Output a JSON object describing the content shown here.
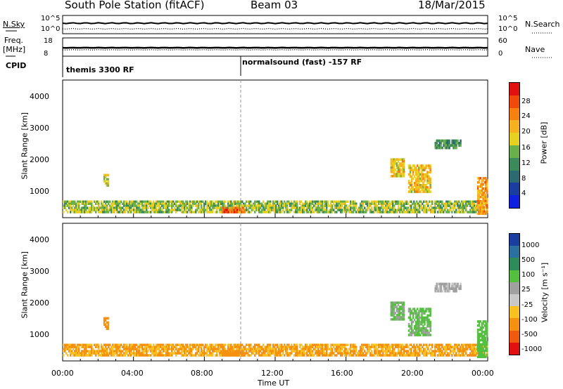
{
  "header": {
    "title": "South Pole Station (fitACF)",
    "beam": "Beam 03",
    "date": "18/Mar/2015"
  },
  "top_panels": {
    "nsky_label": "N.Sky",
    "nsearch_label": "N.Search",
    "nsky_ticks": [
      "10^5",
      "10^0"
    ],
    "nsearch_ticks": [
      "10^5",
      "10^0"
    ],
    "freq_label_1": "Freq.",
    "freq_label_2": "[MHz]",
    "freq_ticks": [
      "18",
      "8"
    ],
    "nave_label": "Nave",
    "nave_ticks": [
      "60",
      "0"
    ],
    "cpid_label": "CPID",
    "cpid_1": "themis 3300 RF",
    "cpid_2": "normalsound (fast) -157 RF"
  },
  "panels": {
    "power": {
      "ylabel": "Slant Range [km]",
      "yticks": [
        "4000",
        "3000",
        "2000",
        "1000"
      ],
      "cb_label": "Power [dB]",
      "cb_ticks": [
        "28",
        "24",
        "20",
        "16",
        "12",
        "8",
        "4"
      ],
      "cb_colors": [
        "#e01010",
        "#f04a0a",
        "#f68010",
        "#f7b020",
        "#e8d020",
        "#6ab04a",
        "#3a8a5a",
        "#2a6a70",
        "#1a3ea0",
        "#1020e0"
      ]
    },
    "velocity": {
      "ylabel": "Slant Range [km]",
      "yticks": [
        "4000",
        "3000",
        "2000",
        "1000"
      ],
      "cb_label": "Velocity [m s⁻¹]",
      "cb_ticks": [
        "1000",
        "500",
        "100",
        "25",
        "-25",
        "-100",
        "-500",
        "-1000"
      ],
      "cb_colors": [
        "#1a3ea0",
        "#2a70a0",
        "#2e8b57",
        "#55c040",
        "#a0a0a0",
        "#c8c8c8",
        "#f8c020",
        "#f69010",
        "#f05a10",
        "#e01010"
      ]
    }
  },
  "xaxis": {
    "label": "Time UT",
    "ticks": [
      "00:00",
      "04:00",
      "08:00",
      "12:00",
      "16:00",
      "20:00",
      "00:00"
    ]
  },
  "chart_data": {
    "type": "heatmap",
    "title": "South Pole Station (fitACF)",
    "subtitle": "Beam 03",
    "date": "18/Mar/2015",
    "xlabel": "Time UT",
    "ylabel": "Slant Range [km]",
    "xlim_hours": [
      0,
      24
    ],
    "ylim_km": [
      200,
      4600
    ],
    "panels": [
      {
        "name": "Power",
        "unit": "dB",
        "zlim": [
          0,
          32
        ]
      },
      {
        "name": "Velocity",
        "unit": "m s^-1",
        "zlim": [
          -1000,
          1000
        ]
      }
    ],
    "mode_change_hour": 10.0,
    "modes": [
      {
        "start_hour": 0,
        "name": "themis 3300 RF"
      },
      {
        "start_hour": 10,
        "name": "normalsound (fast) -157 RF"
      }
    ],
    "echo_regions": [
      {
        "t0": 0.0,
        "t1": 24.0,
        "r0": 350,
        "r1": 750,
        "power": 14,
        "velocity": -120
      },
      {
        "t0": 9.0,
        "t1": 10.3,
        "r0": 350,
        "r1": 550,
        "power": 26,
        "velocity": -200
      },
      {
        "t0": 2.3,
        "t1": 2.6,
        "r0": 1200,
        "r1": 1600,
        "power": 16,
        "velocity": -200
      },
      {
        "t0": 18.5,
        "t1": 19.3,
        "r0": 1500,
        "r1": 2100,
        "power": 18,
        "velocity": 100
      },
      {
        "t0": 19.5,
        "t1": 20.8,
        "r0": 1000,
        "r1": 1900,
        "power": 18,
        "velocity": 100
      },
      {
        "t0": 21.0,
        "t1": 22.5,
        "r0": 2400,
        "r1": 2700,
        "power": 10,
        "velocity": 25
      },
      {
        "t0": 23.4,
        "t1": 24.0,
        "r0": 300,
        "r1": 1500,
        "power": 22,
        "velocity": 300
      }
    ]
  }
}
